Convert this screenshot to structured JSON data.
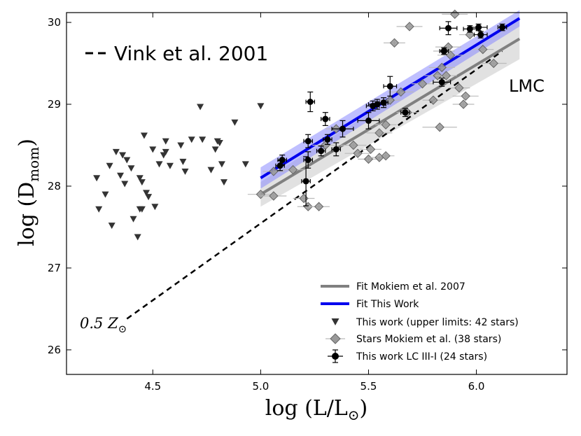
{
  "chart_data": {
    "type": "scatter",
    "title": "",
    "xlabel": "log (L/L",
    "xlabel_sub": "⊙",
    "xlabel_close": ")",
    "ylabel": "log (D",
    "ylabel_sub": "mom",
    "ylabel_close": ")",
    "xlim": [
      4.1,
      6.42
    ],
    "ylim": [
      25.7,
      30.12
    ],
    "xticks": [
      4.5,
      5.0,
      5.5,
      6.0
    ],
    "xtick_labels": [
      "4.5",
      "5.0",
      "5.5",
      "6.0"
    ],
    "yticks": [
      26,
      27,
      28,
      29,
      30
    ],
    "ytick_labels": [
      "26",
      "27",
      "28",
      "29",
      "30"
    ],
    "annotations": {
      "vink_legend": "Vink et al. 2001",
      "lmc_label": "LMC",
      "smc_label": "0.5 Z",
      "smc_label_sub": "⊙"
    },
    "vink_line": {
      "x": [
        4.38,
        6.12
      ],
      "y": [
        26.38,
        29.65
      ],
      "style": "dashed",
      "color": "#000000"
    },
    "fit_mokiem": {
      "label": "Fit Mokiem et al. 2007",
      "x": [
        5.0,
        6.2
      ],
      "y": [
        27.9,
        29.8
      ],
      "band_lo": [
        27.75,
        29.55
      ],
      "band_hi": [
        28.05,
        30.05
      ],
      "color": "#808080",
      "band_color": "#c8c8c8"
    },
    "fit_this_work": {
      "label": "Fit This Work",
      "x": [
        5.0,
        6.2
      ],
      "y": [
        28.1,
        30.05
      ],
      "band_lo": [
        27.97,
        29.95
      ],
      "band_hi": [
        28.23,
        30.15
      ],
      "color": "#0000ee",
      "band_color": "#8a8aff"
    },
    "series": [
      {
        "name": "This work (upper limits: 42 stars)",
        "marker": "triangle-down",
        "color": "#333333",
        "points": [
          [
            4.24,
            28.1
          ],
          [
            4.25,
            27.72
          ],
          [
            4.28,
            27.9
          ],
          [
            4.3,
            28.25
          ],
          [
            4.31,
            27.52
          ],
          [
            4.33,
            28.42
          ],
          [
            4.35,
            28.13
          ],
          [
            4.36,
            28.38
          ],
          [
            4.37,
            28.03
          ],
          [
            4.38,
            28.32
          ],
          [
            4.4,
            28.22
          ],
          [
            4.41,
            27.6
          ],
          [
            4.43,
            27.38
          ],
          [
            4.44,
            27.72
          ],
          [
            4.44,
            28.1
          ],
          [
            4.45,
            28.05
          ],
          [
            4.45,
            27.72
          ],
          [
            4.46,
            28.62
          ],
          [
            4.47,
            27.92
          ],
          [
            4.48,
            27.87
          ],
          [
            4.5,
            28.45
          ],
          [
            4.51,
            27.75
          ],
          [
            4.53,
            28.27
          ],
          [
            4.55,
            28.38
          ],
          [
            4.56,
            28.42
          ],
          [
            4.56,
            28.55
          ],
          [
            4.58,
            28.25
          ],
          [
            4.63,
            28.5
          ],
          [
            4.64,
            28.3
          ],
          [
            4.65,
            28.18
          ],
          [
            4.68,
            28.57
          ],
          [
            4.72,
            28.97
          ],
          [
            4.73,
            28.57
          ],
          [
            4.77,
            28.2
          ],
          [
            4.79,
            28.45
          ],
          [
            4.8,
            28.55
          ],
          [
            4.81,
            28.53
          ],
          [
            4.82,
            28.27
          ],
          [
            4.83,
            28.05
          ],
          [
            4.88,
            28.78
          ],
          [
            4.93,
            28.27
          ],
          [
            5.0,
            28.98
          ]
        ]
      },
      {
        "name": "Stars Mokiem et al. (38 stars)",
        "marker": "diamond",
        "color": "#999999",
        "points": [
          [
            5.0,
            27.9,
            0.06,
            0.04
          ],
          [
            5.06,
            27.88,
            0.06,
            0.04
          ],
          [
            5.06,
            28.18,
            0.05,
            0.04
          ],
          [
            5.15,
            28.2,
            0.05,
            0.04
          ],
          [
            5.2,
            27.85,
            0.05,
            0.04
          ],
          [
            5.22,
            27.75,
            0.05,
            0.04
          ],
          [
            5.27,
            27.75,
            0.05,
            0.04
          ],
          [
            5.3,
            28.5,
            0.06,
            0.04
          ],
          [
            5.35,
            28.7,
            0.05,
            0.04
          ],
          [
            5.43,
            28.5,
            0.06,
            0.04
          ],
          [
            5.45,
            28.4,
            0.06,
            0.04
          ],
          [
            5.5,
            28.33,
            0.05,
            0.04
          ],
          [
            5.51,
            28.45,
            0.05,
            0.04
          ],
          [
            5.55,
            28.35,
            0.04,
            0.04
          ],
          [
            5.55,
            28.65,
            0.06,
            0.04
          ],
          [
            5.58,
            28.37,
            0.04,
            0.04
          ],
          [
            5.58,
            28.75,
            0.05,
            0.04
          ],
          [
            5.6,
            29.05,
            0.05,
            0.04
          ],
          [
            5.62,
            29.75,
            0.05,
            0.04
          ],
          [
            5.65,
            29.15,
            0.06,
            0.04
          ],
          [
            5.68,
            28.9,
            0.05,
            0.04
          ],
          [
            5.69,
            29.95,
            0.06,
            0.04
          ],
          [
            5.75,
            29.25,
            0.05,
            0.04
          ],
          [
            5.8,
            29.05,
            0.05,
            0.04
          ],
          [
            5.82,
            29.35,
            0.06,
            0.04
          ],
          [
            5.83,
            28.72,
            0.08,
            0.04
          ],
          [
            5.84,
            29.45,
            0.06,
            0.04
          ],
          [
            5.85,
            29.65,
            0.05,
            0.04
          ],
          [
            5.86,
            29.35,
            0.05,
            0.04
          ],
          [
            5.87,
            29.7,
            0.06,
            0.04
          ],
          [
            5.88,
            29.6,
            0.06,
            0.04
          ],
          [
            5.9,
            30.1,
            0.06,
            0.04
          ],
          [
            5.92,
            29.2,
            0.05,
            0.04
          ],
          [
            5.94,
            29.0,
            0.05,
            0.04
          ],
          [
            5.95,
            29.1,
            0.06,
            0.04
          ],
          [
            5.97,
            29.85,
            0.05,
            0.04
          ],
          [
            6.03,
            29.67,
            0.05,
            0.04
          ],
          [
            6.08,
            29.5,
            0.06,
            0.04
          ]
        ]
      },
      {
        "name": "This work LC III-I (24 stars)",
        "marker": "circle",
        "color": "#000000",
        "points": [
          [
            5.09,
            28.25,
            0.02,
            0.06
          ],
          [
            5.1,
            28.32,
            0.02,
            0.06
          ],
          [
            5.21,
            28.06,
            0.02,
            0.3
          ],
          [
            5.22,
            28.55,
            0.02,
            0.08
          ],
          [
            5.22,
            28.32,
            0.02,
            0.1
          ],
          [
            5.23,
            29.03,
            0.02,
            0.12
          ],
          [
            5.28,
            28.43,
            0.02,
            0.06
          ],
          [
            5.3,
            28.82,
            0.02,
            0.08
          ],
          [
            5.31,
            28.57,
            0.02,
            0.06
          ],
          [
            5.35,
            28.45,
            0.02,
            0.08
          ],
          [
            5.38,
            28.7,
            0.05,
            0.1
          ],
          [
            5.5,
            28.8,
            0.05,
            0.1
          ],
          [
            5.52,
            28.98,
            0.03,
            0.06
          ],
          [
            5.54,
            29.0,
            0.04,
            0.06
          ],
          [
            5.57,
            29.02,
            0.02,
            0.06
          ],
          [
            5.6,
            29.22,
            0.03,
            0.12
          ],
          [
            5.67,
            28.9,
            0.02,
            0.05
          ],
          [
            5.84,
            29.27,
            0.04,
            0.05
          ],
          [
            5.85,
            29.65,
            0.02,
            0.04
          ],
          [
            5.87,
            29.93,
            0.04,
            0.08
          ],
          [
            5.97,
            29.92,
            0.03,
            0.04
          ],
          [
            6.01,
            29.94,
            0.04,
            0.04
          ],
          [
            6.02,
            29.85,
            0.03,
            0.04
          ],
          [
            6.12,
            29.94,
            0.02,
            0.04
          ]
        ]
      }
    ]
  }
}
